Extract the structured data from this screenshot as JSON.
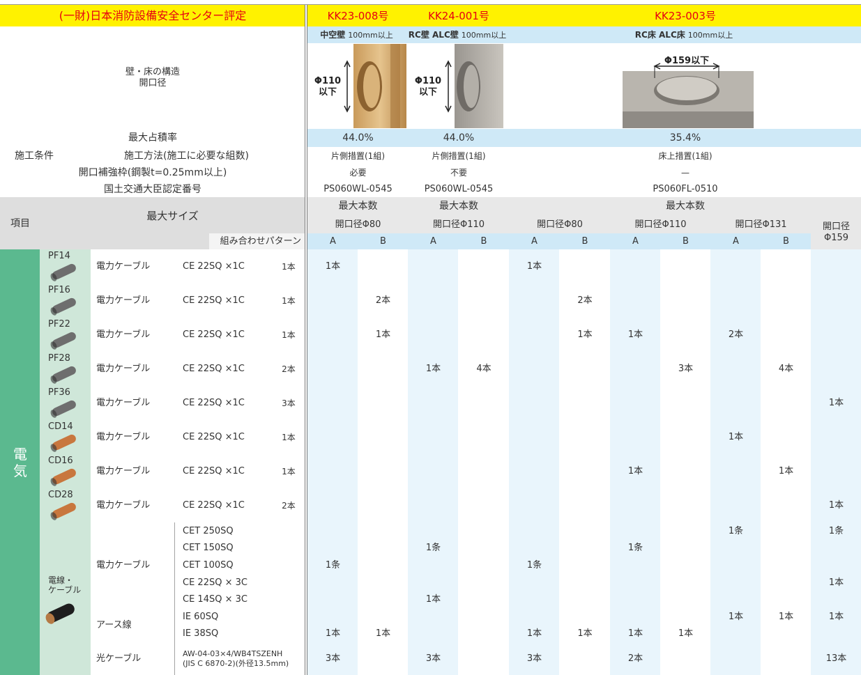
{
  "header": {
    "evaluator": "(一財)日本消防設備安全センター評定",
    "structure_label": [
      "壁・床の構造",
      "開口径"
    ],
    "max_fill_label": "最大占積率",
    "condition_label": "施工条件",
    "method_label": "施工方法(施工に必要な組数)",
    "frame_label": "開口補強枠(鋼製t=0.25mm以上)",
    "approval_label": "国土交通大臣認定番号"
  },
  "systems": [
    {
      "id": "KK23-008号",
      "structure": "中空壁",
      "structure_note": "100mm以上",
      "opening": [
        "Φ110",
        "以下"
      ],
      "max_fill": "44.0%",
      "method": "片側措置(1組)",
      "frame": "必要",
      "approval": "PS060WL-0545"
    },
    {
      "id": "KK24-001号",
      "structure": "RC壁 ALC壁",
      "structure_note": "100mm以上",
      "opening": [
        "Φ110",
        "以下"
      ],
      "max_fill": "44.0%",
      "method": "片側措置(1組)",
      "frame": "不要",
      "approval": "PS060WL-0545"
    },
    {
      "id": "KK23-003号",
      "structure": "RC床 ALC床",
      "structure_note": "100mm以上",
      "opening": [
        "Φ159以下"
      ],
      "max_fill": "35.4%",
      "method": "床上措置(1組)",
      "frame": "—",
      "approval": "PS060FL-0510"
    }
  ],
  "table": {
    "item_label": "項目",
    "size_label": "最大サイズ",
    "pattern_label": "組み合わせパターン",
    "max_count_label": "最大本数",
    "openings": [
      {
        "label": "開口径Φ80",
        "patterns": [
          "A",
          "B"
        ]
      },
      {
        "label": "開口径Φ110",
        "patterns": [
          "A",
          "B"
        ]
      },
      {
        "label": "開口径Φ80",
        "patterns": [
          "A",
          "B"
        ]
      },
      {
        "label": "開口径Φ110",
        "patterns": [
          "A",
          "B"
        ]
      },
      {
        "label": "開口径Φ131",
        "patterns": [
          "A",
          "B"
        ]
      },
      {
        "label": [
          "開口径",
          "Φ159"
        ],
        "patterns": []
      }
    ],
    "category": [
      "電",
      "気"
    ],
    "conduit_rows": [
      {
        "conduit": "PF14",
        "type": "電力ケーブル",
        "spec": "CE 22SQ ×1C",
        "count": "1本",
        "cells": [
          "1本",
          null,
          null,
          null,
          "1本",
          null,
          null,
          null,
          null,
          null,
          null
        ]
      },
      {
        "conduit": "PF16",
        "type": "電力ケーブル",
        "spec": "CE 22SQ ×1C",
        "count": "1本",
        "cells": [
          null,
          "2本",
          null,
          null,
          null,
          "2本",
          null,
          null,
          null,
          null,
          null
        ]
      },
      {
        "conduit": "PF22",
        "type": "電力ケーブル",
        "spec": "CE 22SQ ×1C",
        "count": "1本",
        "cells": [
          null,
          "1本",
          null,
          null,
          null,
          "1本",
          "1本",
          null,
          "2本",
          null,
          null
        ]
      },
      {
        "conduit": "PF28",
        "type": "電力ケーブル",
        "spec": "CE 22SQ ×1C",
        "count": "2本",
        "cells": [
          null,
          null,
          "1本",
          "4本",
          null,
          null,
          null,
          "3本",
          null,
          "4本",
          null
        ]
      },
      {
        "conduit": "PF36",
        "type": "電力ケーブル",
        "spec": "CE 22SQ ×1C",
        "count": "3本",
        "cells": [
          null,
          null,
          null,
          null,
          null,
          null,
          null,
          null,
          null,
          null,
          "1本"
        ]
      },
      {
        "conduit": "CD14",
        "type": "電力ケーブル",
        "spec": "CE 22SQ ×1C",
        "count": "1本",
        "cells": [
          null,
          null,
          null,
          null,
          null,
          null,
          null,
          null,
          "1本",
          null,
          null
        ]
      },
      {
        "conduit": "CD16",
        "type": "電力ケーブル",
        "spec": "CE 22SQ ×1C",
        "count": "1本",
        "cells": [
          null,
          null,
          null,
          null,
          null,
          null,
          "1本",
          null,
          null,
          "1本",
          null
        ]
      },
      {
        "conduit": "CD28",
        "type": "電力ケーブル",
        "spec": "CE 22SQ ×1C",
        "count": "2本",
        "cells": [
          null,
          null,
          null,
          null,
          null,
          null,
          null,
          null,
          null,
          null,
          "1本"
        ]
      }
    ],
    "cable_label": [
      "電線・",
      "ケーブル"
    ],
    "cable_types": [
      {
        "label": "電力ケーブル",
        "rows": [
          {
            "spec": "CET 250SQ",
            "cells": [
              null,
              null,
              null,
              null,
              null,
              null,
              null,
              null,
              "1条",
              null,
              "1条"
            ]
          },
          {
            "spec": "CET 150SQ",
            "cells": [
              null,
              null,
              "1条",
              null,
              null,
              null,
              "1条",
              null,
              null,
              null,
              null
            ]
          },
          {
            "spec": "CET 100SQ",
            "cells": [
              "1条",
              null,
              null,
              null,
              "1条",
              null,
              null,
              null,
              null,
              null,
              null
            ]
          },
          {
            "spec": "CE 22SQ × 3C",
            "cells": [
              null,
              null,
              null,
              null,
              null,
              null,
              null,
              null,
              null,
              null,
              "1本"
            ]
          },
          {
            "spec": "CE 14SQ × 3C",
            "cells": [
              null,
              null,
              "1本",
              null,
              null,
              null,
              null,
              null,
              null,
              null,
              null
            ]
          }
        ]
      },
      {
        "label": "アース線",
        "rows": [
          {
            "spec": "IE 60SQ",
            "cells": [
              null,
              null,
              null,
              null,
              null,
              null,
              null,
              null,
              "1本",
              "1本",
              "1本"
            ]
          },
          {
            "spec": "IE 38SQ",
            "cells": [
              "1本",
              "1本",
              null,
              null,
              "1本",
              "1本",
              "1本",
              "1本",
              null,
              null,
              null
            ]
          }
        ]
      },
      {
        "label": "光ケーブル",
        "rows": [
          {
            "spec": [
              "AW-04-03×4/WB4TSZENH",
              "(JIS C 6870-2)(外径13.5mm)"
            ],
            "cells": [
              "3本",
              null,
              "3本",
              null,
              "3本",
              null,
              "2本",
              null,
              null,
              null,
              "13本"
            ]
          }
        ]
      }
    ]
  }
}
